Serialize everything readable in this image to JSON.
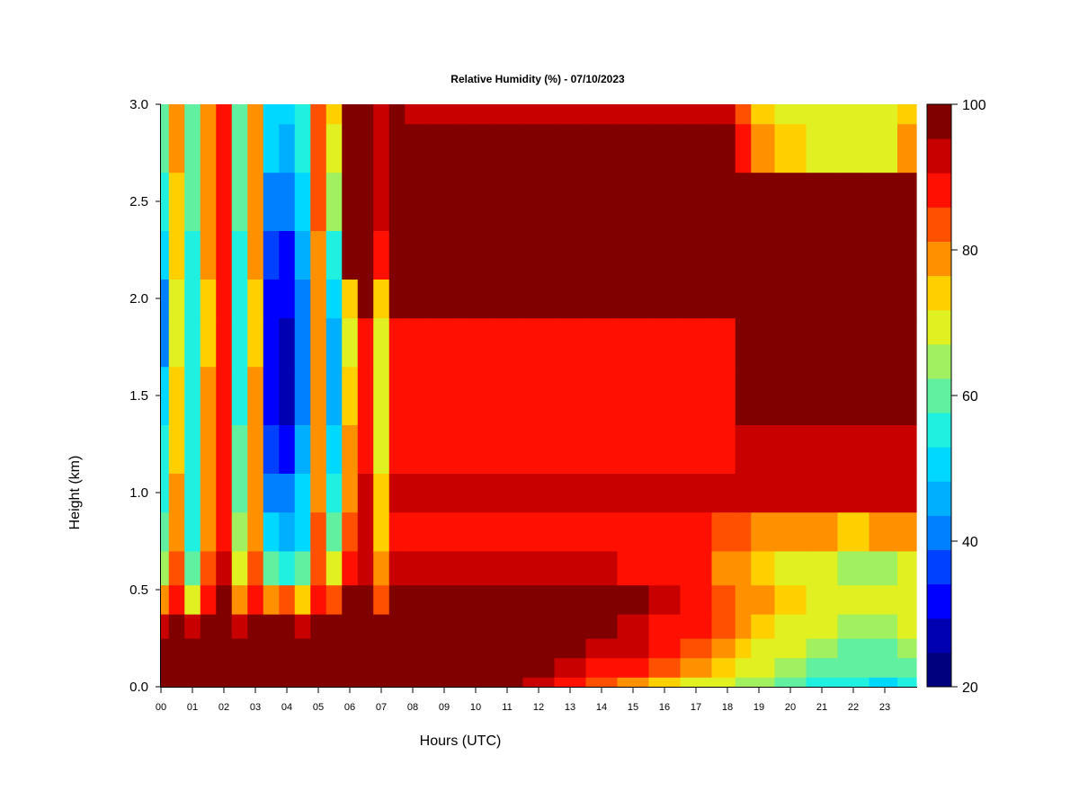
{
  "chart_data": {
    "type": "heatmap",
    "title": "Relative Humidity (%) - 07/10/2023",
    "xlabel": "Hours (UTC)",
    "ylabel": "Height (km)",
    "xlim": [
      0,
      24
    ],
    "ylim": [
      0.0,
      3.0
    ],
    "x_ticks": [
      "00",
      "01",
      "02",
      "03",
      "04",
      "05",
      "06",
      "07",
      "08",
      "09",
      "10",
      "11",
      "12",
      "13",
      "14",
      "15",
      "16",
      "17",
      "18",
      "19",
      "20",
      "21",
      "22",
      "23"
    ],
    "y_ticks": [
      "0.0",
      "0.5",
      "1.0",
      "1.5",
      "2.0",
      "2.5",
      "3.0"
    ],
    "y_tick_values": [
      0.0,
      0.5,
      1.0,
      1.5,
      2.0,
      2.5,
      3.0
    ],
    "colorbar": {
      "range": [
        20,
        100
      ],
      "step": 5,
      "tick_labels": [
        "20",
        "40",
        "60",
        "80",
        "100"
      ],
      "tick_values": [
        20,
        40,
        60,
        80,
        100
      ],
      "colors": [
        "#00007f",
        "#0000b3",
        "#0000ff",
        "#0040ff",
        "#0080ff",
        "#00b0ff",
        "#00d8ff",
        "#20f0e0",
        "#60f0a0",
        "#a0f060",
        "#e0f020",
        "#ffd000",
        "#ff9000",
        "#ff5000",
        "#ff1000",
        "#c80000",
        "#800000"
      ]
    },
    "height_km": [
      0.0,
      0.1,
      0.2,
      0.3,
      0.45,
      0.6,
      0.8,
      1.0,
      1.2,
      1.5,
      1.8,
      2.0,
      2.2,
      2.5,
      2.8,
      3.0
    ],
    "hours": [
      0.0,
      0.5,
      1.0,
      1.5,
      2.0,
      2.5,
      3.0,
      3.5,
      4.0,
      4.5,
      5.0,
      5.5,
      6.0,
      6.5,
      7.0,
      7.5,
      8.0,
      9.0,
      10.0,
      11.0,
      12.0,
      13.0,
      14.0,
      15.0,
      16.0,
      17.0,
      18.0,
      18.5,
      19.0,
      20.0,
      21.0,
      22.0,
      23.0,
      23.8
    ],
    "rh_percent_rows": [
      [
        100,
        100,
        100,
        100,
        100,
        100,
        100,
        100,
        100,
        100,
        100,
        100,
        100,
        100,
        100,
        100,
        100,
        100,
        100,
        100,
        98,
        92,
        88,
        82,
        76,
        72,
        70,
        68,
        66,
        62,
        58,
        56,
        54,
        55
      ],
      [
        100,
        100,
        100,
        100,
        100,
        100,
        100,
        100,
        100,
        100,
        100,
        100,
        100,
        100,
        100,
        100,
        100,
        100,
        100,
        100,
        100,
        98,
        94,
        90,
        85,
        80,
        76,
        74,
        72,
        68,
        64,
        62,
        60,
        62
      ],
      [
        100,
        100,
        100,
        100,
        100,
        100,
        100,
        100,
        100,
        100,
        100,
        100,
        100,
        100,
        100,
        100,
        100,
        100,
        100,
        100,
        100,
        100,
        98,
        95,
        90,
        86,
        82,
        78,
        74,
        70,
        66,
        64,
        64,
        66
      ],
      [
        95,
        100,
        96,
        100,
        100,
        96,
        100,
        100,
        100,
        95,
        100,
        100,
        100,
        100,
        100,
        100,
        100,
        100,
        100,
        100,
        100,
        100,
        100,
        98,
        94,
        90,
        86,
        82,
        78,
        74,
        70,
        68,
        68,
        70
      ],
      [
        80,
        92,
        74,
        90,
        100,
        80,
        92,
        84,
        86,
        78,
        92,
        86,
        100,
        100,
        88,
        100,
        100,
        100,
        100,
        100,
        100,
        100,
        100,
        100,
        98,
        94,
        88,
        84,
        80,
        76,
        72,
        70,
        70,
        72
      ],
      [
        65,
        86,
        62,
        86,
        96,
        70,
        86,
        60,
        58,
        60,
        88,
        72,
        94,
        98,
        80,
        96,
        96,
        96,
        96,
        96,
        96,
        96,
        96,
        94,
        92,
        90,
        84,
        80,
        78,
        74,
        70,
        68,
        68,
        70
      ],
      [
        60,
        82,
        58,
        84,
        94,
        66,
        84,
        50,
        46,
        54,
        86,
        64,
        88,
        96,
        76,
        94,
        94,
        94,
        94,
        94,
        94,
        94,
        94,
        94,
        92,
        90,
        88,
        86,
        84,
        82,
        80,
        78,
        80,
        82
      ],
      [
        58,
        80,
        58,
        82,
        92,
        62,
        82,
        44,
        40,
        50,
        84,
        58,
        84,
        96,
        76,
        96,
        96,
        96,
        96,
        96,
        96,
        96,
        96,
        96,
        96,
        96,
        96,
        96,
        96,
        96,
        96,
        96,
        96,
        96
      ],
      [
        56,
        78,
        58,
        80,
        90,
        60,
        80,
        38,
        34,
        46,
        82,
        52,
        80,
        94,
        74,
        94,
        94,
        94,
        94,
        94,
        94,
        94,
        94,
        94,
        94,
        94,
        94,
        96,
        96,
        96,
        96,
        96,
        96,
        96
      ],
      [
        52,
        76,
        58,
        80,
        90,
        58,
        80,
        32,
        28,
        42,
        80,
        48,
        76,
        92,
        74,
        92,
        92,
        92,
        92,
        92,
        92,
        92,
        92,
        92,
        92,
        92,
        94,
        100,
        100,
        100,
        100,
        100,
        100,
        100
      ],
      [
        40,
        74,
        56,
        78,
        90,
        56,
        78,
        30,
        26,
        40,
        80,
        46,
        74,
        90,
        74,
        90,
        90,
        90,
        90,
        90,
        90,
        90,
        90,
        90,
        90,
        90,
        92,
        100,
        100,
        100,
        100,
        100,
        100,
        100
      ],
      [
        44,
        74,
        56,
        78,
        90,
        56,
        78,
        32,
        30,
        42,
        82,
        50,
        78,
        100,
        76,
        100,
        100,
        100,
        100,
        100,
        100,
        100,
        100,
        100,
        100,
        100,
        100,
        100,
        100,
        100,
        100,
        100,
        100,
        100
      ],
      [
        50,
        76,
        58,
        80,
        90,
        58,
        80,
        36,
        34,
        46,
        84,
        56,
        100,
        100,
        90,
        100,
        100,
        100,
        100,
        100,
        100,
        100,
        100,
        100,
        100,
        100,
        100,
        100,
        100,
        100,
        100,
        100,
        100,
        100
      ],
      [
        56,
        78,
        60,
        82,
        92,
        60,
        82,
        44,
        42,
        52,
        86,
        66,
        100,
        100,
        96,
        100,
        100,
        100,
        100,
        100,
        100,
        100,
        100,
        100,
        100,
        100,
        100,
        100,
        100,
        100,
        100,
        100,
        100,
        100
      ],
      [
        60,
        80,
        62,
        84,
        92,
        62,
        84,
        50,
        48,
        56,
        88,
        74,
        100,
        100,
        96,
        100,
        100,
        100,
        100,
        100,
        100,
        100,
        100,
        100,
        100,
        100,
        100,
        90,
        80,
        76,
        74,
        72,
        74,
        80
      ],
      [
        62,
        80,
        62,
        84,
        92,
        62,
        84,
        54,
        52,
        58,
        88,
        78,
        100,
        100,
        96,
        100,
        98,
        98,
        98,
        98,
        98,
        98,
        98,
        98,
        98,
        98,
        98,
        88,
        76,
        72,
        70,
        70,
        72,
        76
      ]
    ]
  }
}
